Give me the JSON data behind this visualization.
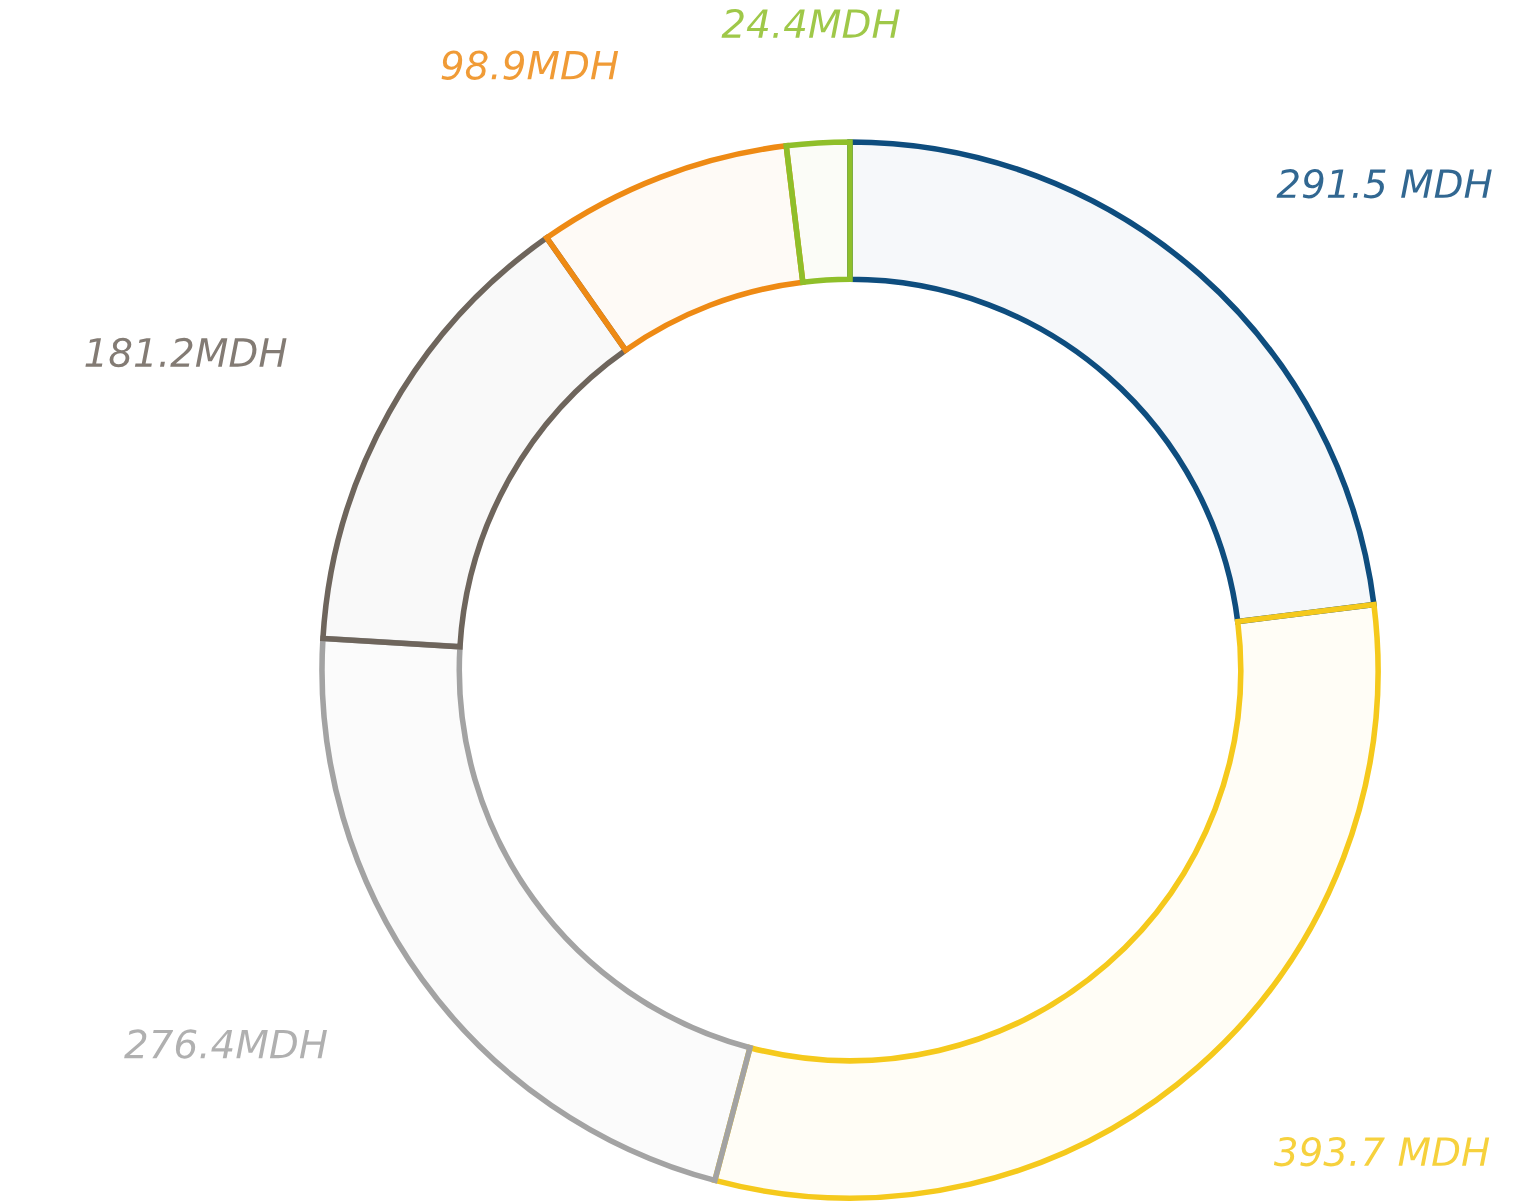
{
  "chart_data": {
    "type": "donut",
    "categories": [
      null,
      null,
      null,
      null,
      null,
      null
    ],
    "values": [
      291.5,
      393.7,
      276.4,
      181.2,
      98.9,
      24.4
    ],
    "colors": [
      "#0e4d7e",
      "#f5c91c",
      "#a3a3a3",
      "#6e655c",
      "#ee8a14",
      "#8fbf2a"
    ],
    "value_labels": [
      "291.5 MDH",
      "393.7 MDH",
      "276.4MDH",
      "181.2MDH",
      "98.9MDH",
      "24.4MDH"
    ],
    "legend": false
  }
}
